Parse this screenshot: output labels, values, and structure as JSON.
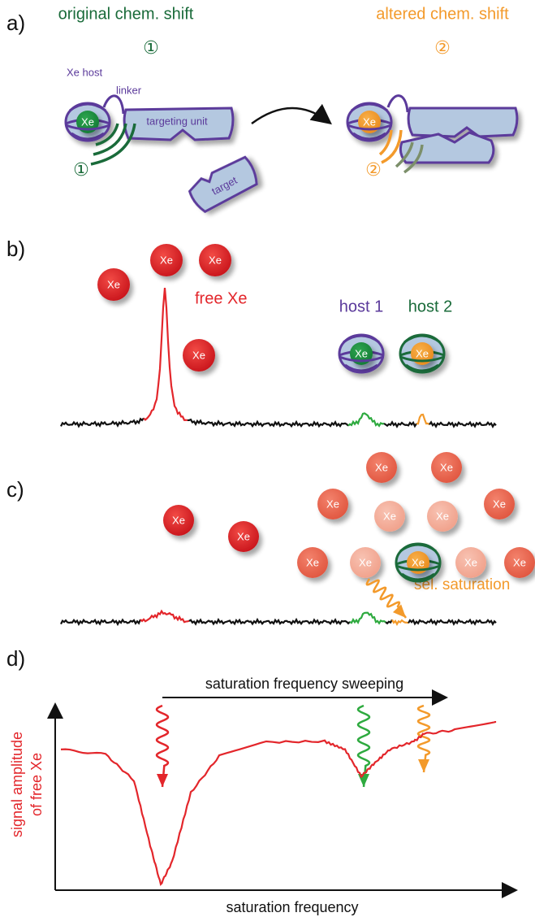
{
  "panel_a": {
    "label": "a)",
    "left_title": "original chem. shift",
    "left_marker": "①",
    "right_title": "altered chem. shift",
    "right_marker": "②",
    "host_label": "Xe host",
    "linker_label": "linker",
    "left_xe": "Xe",
    "targeting_unit": "targeting unit",
    "left_signal_marker": "①",
    "target": "target",
    "right_xe": "Xe",
    "right_signal_marker": "②"
  },
  "panel_b": {
    "label": "b)",
    "free_xe_atoms": [
      "Xe",
      "Xe",
      "Xe",
      "Xe"
    ],
    "free_xe_label": "free Xe",
    "host_1": "host 1",
    "host_2": "host 2",
    "host_1_xe": "Xe",
    "host_2_xe": "Xe"
  },
  "panel_c": {
    "label": "c)",
    "free_xe_atoms": [
      "Xe",
      "Xe"
    ],
    "saturated_xe_atoms": [
      "Xe",
      "Xe",
      "Xe",
      "Xe",
      "Xe",
      "Xe",
      "Xe",
      "Xe",
      "Xe",
      "Xe"
    ],
    "host_xe": "Xe",
    "saturation_label": "sel. saturation"
  },
  "panel_d": {
    "label": "d)",
    "sweep_label": "saturation frequency sweeping",
    "y_axis_label": [
      "signal amplitude",
      "of free Xe"
    ],
    "x_axis_label": "saturation frequency"
  }
}
